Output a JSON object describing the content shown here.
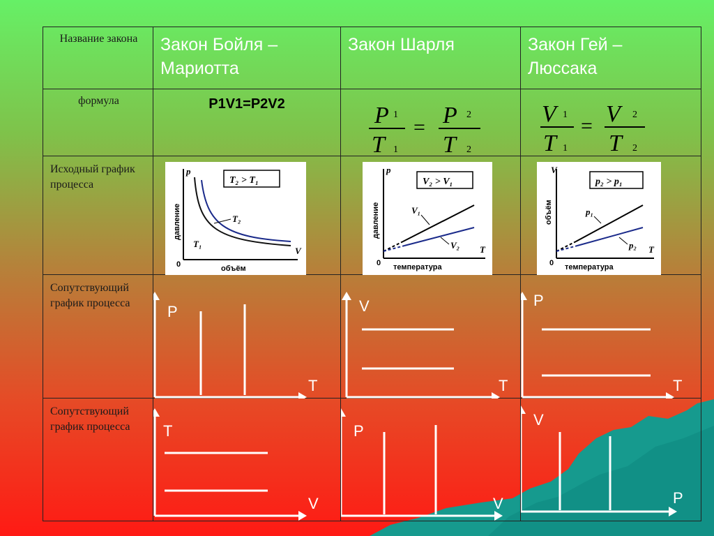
{
  "header": {
    "row_label": "Название закона",
    "col1": "Закон Бойля – Мариотта",
    "col2": "Закон Шарля",
    "col3": "Закон Гей – Люссака"
  },
  "formula": {
    "row_label": "формула",
    "boyle": "P1V1=P2V2",
    "charles": {
      "num_l": "P",
      "sub_nl": "1",
      "den_l": "T",
      "sub_dl": "1",
      "eq": "=",
      "num_r": "P",
      "sub_nr": "2",
      "den_r": "T",
      "sub_dr": "2"
    },
    "gaylussac": {
      "num_l": "V",
      "sub_nl": "1",
      "den_l": "T",
      "sub_dl": "1",
      "eq": "=",
      "num_r": "V",
      "sub_nr": "2",
      "den_r": "T",
      "sub_dr": "2"
    }
  },
  "initial": {
    "row_label": "Исходный график процесса",
    "boyle": {
      "y_axis": "p",
      "y_label": "давление",
      "x_axis": "V",
      "x_label": "объём",
      "origin": "0",
      "legend": "T₂ > T₁",
      "curve1": "T₂",
      "curve2": "T₁"
    },
    "charles": {
      "y_axis": "p",
      "y_label": "давление",
      "x_axis": "T",
      "x_label": "температура",
      "origin": "0",
      "legend": "V₂ > V₁",
      "line1": "V₁",
      "line2": "V₂"
    },
    "gaylussac": {
      "y_axis": "V",
      "y_label": "объём",
      "x_axis": "T",
      "x_label": "температура",
      "origin": "0",
      "legend": "p₂ > p₁",
      "line1": "p₁",
      "line2": "p₂"
    }
  },
  "companion1": {
    "row_label": "Сопутствующий график процесса",
    "boyle": {
      "y": "P",
      "x": "T"
    },
    "charles": {
      "y": "V",
      "x": "T"
    },
    "gaylussac": {
      "y": "P",
      "x": "T"
    }
  },
  "companion2": {
    "row_label": "Сопутствующий график процесса",
    "boyle": {
      "y": "T",
      "x": "V"
    },
    "charles": {
      "y": "P",
      "x": "V"
    },
    "gaylussac": {
      "y": "V",
      "x": "P"
    }
  },
  "colors": {
    "header_text": "#ffffff",
    "graph_lines": "#ffffff",
    "curve_dark": "#111111",
    "curve_blue": "#1a2a8a",
    "decor_teal": "#169a8e"
  }
}
